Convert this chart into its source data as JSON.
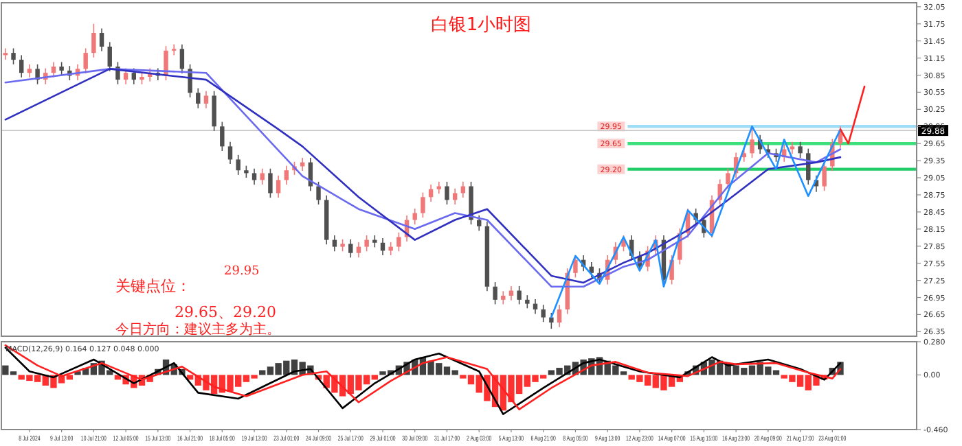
{
  "chart_data": [
    {
      "type": "candlestick",
      "title": "白银1小时图",
      "tick_labels": "y",
      "ylim": [
        26.27,
        32.12
      ],
      "yticks": [
        26.35,
        26.65,
        26.95,
        27.25,
        27.55,
        27.85,
        28.15,
        28.45,
        28.75,
        29.05,
        29.35,
        29.65,
        29.95,
        30.25,
        30.55,
        30.85,
        31.15,
        31.45,
        31.75,
        32.05
      ],
      "categories": [
        null,
        null,
        null,
        null,
        null,
        null,
        null,
        null,
        null,
        null,
        null,
        null,
        null,
        null,
        null,
        null,
        null,
        null,
        null,
        null,
        null,
        null,
        null,
        null,
        null,
        null,
        null,
        null,
        null,
        null,
        null,
        null,
        null,
        null,
        null,
        null,
        null,
        null,
        null,
        null,
        null,
        null,
        null,
        null,
        null,
        null,
        null,
        null,
        null,
        null,
        null,
        null,
        null,
        null,
        null,
        null,
        null,
        null,
        null,
        null,
        null,
        null,
        null,
        null,
        null,
        null,
        null,
        null,
        null,
        null,
        null,
        null,
        null,
        null,
        null,
        null,
        null,
        null,
        null,
        null,
        null,
        null,
        null,
        null,
        null,
        null,
        null,
        null,
        null,
        null,
        null,
        null,
        null,
        null,
        null,
        null,
        null,
        null,
        null,
        null,
        null,
        null,
        null,
        null,
        null,
        null,
        null,
        null,
        null,
        null,
        null,
        null,
        null,
        null
      ],
      "ohlc": [
        [
          31.2,
          31.32,
          31.12,
          31.24
        ],
        [
          31.24,
          31.32,
          31.04,
          31.12
        ],
        [
          31.12,
          31.2,
          30.81,
          30.89
        ],
        [
          30.89,
          31.04,
          30.81,
          30.96
        ],
        [
          30.96,
          31.04,
          30.69,
          30.77
        ],
        [
          30.77,
          30.97,
          30.69,
          30.89
        ],
        [
          30.89,
          31.08,
          30.81,
          31.0
        ],
        [
          31.0,
          31.08,
          30.85,
          30.93
        ],
        [
          30.93,
          31.01,
          30.76,
          30.84
        ],
        [
          30.84,
          31.04,
          30.76,
          30.96
        ],
        [
          30.96,
          31.32,
          30.88,
          31.24
        ],
        [
          31.24,
          31.75,
          31.16,
          31.59
        ],
        [
          31.59,
          31.67,
          31.27,
          31.35
        ],
        [
          31.35,
          31.43,
          30.92,
          31.0
        ],
        [
          31.0,
          31.08,
          30.69,
          30.77
        ],
        [
          30.77,
          30.97,
          30.69,
          30.89
        ],
        [
          30.89,
          30.97,
          30.69,
          30.77
        ],
        [
          30.77,
          30.9,
          30.69,
          30.82
        ],
        [
          30.82,
          30.97,
          30.74,
          30.89
        ],
        [
          30.89,
          30.97,
          30.76,
          30.84
        ],
        [
          30.84,
          31.36,
          30.76,
          31.28
        ],
        [
          31.28,
          31.39,
          31.2,
          31.31
        ],
        [
          31.31,
          31.39,
          30.88,
          30.96
        ],
        [
          30.96,
          31.04,
          30.46,
          30.54
        ],
        [
          30.54,
          30.62,
          30.27,
          30.35
        ],
        [
          30.35,
          30.57,
          30.27,
          30.49
        ],
        [
          30.49,
          30.57,
          29.87,
          29.95
        ],
        [
          29.95,
          30.03,
          29.52,
          29.6
        ],
        [
          29.6,
          29.68,
          29.29,
          29.37
        ],
        [
          29.37,
          29.45,
          29.1,
          29.18
        ],
        [
          29.18,
          29.26,
          29.05,
          29.13
        ],
        [
          29.13,
          29.21,
          28.93,
          29.01
        ],
        [
          29.01,
          29.21,
          28.93,
          29.13
        ],
        [
          29.13,
          29.21,
          28.7,
          28.78
        ],
        [
          28.78,
          29.09,
          28.7,
          29.01
        ],
        [
          29.01,
          29.26,
          28.93,
          29.18
        ],
        [
          29.18,
          29.33,
          29.1,
          29.25
        ],
        [
          29.25,
          29.4,
          29.17,
          29.32
        ],
        [
          29.32,
          29.4,
          28.82,
          28.9
        ],
        [
          28.9,
          28.98,
          28.58,
          28.66
        ],
        [
          28.66,
          28.74,
          27.88,
          27.96
        ],
        [
          27.96,
          28.04,
          27.76,
          27.84
        ],
        [
          27.84,
          27.97,
          27.76,
          27.89
        ],
        [
          27.89,
          27.97,
          27.65,
          27.73
        ],
        [
          27.73,
          27.92,
          27.65,
          27.84
        ],
        [
          27.84,
          28.04,
          27.76,
          27.96
        ],
        [
          27.96,
          28.04,
          27.83,
          27.91
        ],
        [
          27.91,
          27.99,
          27.69,
          27.77
        ],
        [
          27.77,
          27.92,
          27.69,
          27.84
        ],
        [
          27.84,
          28.09,
          27.76,
          28.01
        ],
        [
          28.01,
          28.39,
          27.93,
          28.31
        ],
        [
          28.31,
          28.51,
          28.23,
          28.43
        ],
        [
          28.43,
          28.79,
          28.35,
          28.71
        ],
        [
          28.71,
          28.93,
          28.63,
          28.85
        ],
        [
          28.85,
          28.98,
          28.77,
          28.9
        ],
        [
          28.9,
          28.98,
          28.58,
          28.66
        ],
        [
          28.66,
          28.86,
          28.58,
          28.78
        ],
        [
          28.78,
          28.98,
          28.7,
          28.9
        ],
        [
          28.9,
          28.98,
          28.23,
          28.31
        ],
        [
          28.31,
          28.39,
          28.12,
          28.2
        ],
        [
          28.2,
          28.28,
          27.06,
          27.14
        ],
        [
          27.14,
          27.22,
          26.83,
          26.91
        ],
        [
          26.91,
          27.06,
          26.83,
          26.98
        ],
        [
          26.98,
          27.15,
          26.9,
          27.07
        ],
        [
          27.07,
          27.15,
          26.83,
          26.91
        ],
        [
          26.91,
          26.99,
          26.76,
          26.84
        ],
        [
          26.84,
          26.92,
          26.66,
          26.74
        ],
        [
          26.74,
          26.82,
          26.52,
          26.6
        ],
        [
          26.6,
          26.68,
          26.4,
          26.51
        ],
        [
          26.51,
          26.82,
          26.43,
          26.74
        ],
        [
          26.74,
          27.46,
          26.66,
          27.38
        ],
        [
          27.38,
          27.69,
          27.3,
          27.61
        ],
        [
          27.61,
          27.69,
          27.41,
          27.49
        ],
        [
          27.49,
          27.57,
          27.3,
          27.38
        ],
        [
          27.38,
          27.46,
          27.18,
          27.26
        ],
        [
          27.26,
          27.69,
          27.18,
          27.61
        ],
        [
          27.61,
          27.92,
          27.53,
          27.84
        ],
        [
          27.84,
          28.04,
          27.76,
          27.96
        ],
        [
          27.96,
          28.04,
          27.6,
          27.68
        ],
        [
          27.68,
          27.76,
          27.41,
          27.49
        ],
        [
          27.49,
          27.85,
          27.41,
          27.77
        ],
        [
          27.77,
          28.04,
          27.69,
          27.96
        ],
        [
          27.96,
          28.04,
          27.18,
          27.26
        ],
        [
          27.26,
          27.69,
          27.18,
          27.61
        ],
        [
          27.61,
          28.16,
          27.53,
          28.08
        ],
        [
          28.08,
          28.51,
          28.0,
          28.43
        ],
        [
          28.43,
          28.51,
          28.23,
          28.31
        ],
        [
          28.31,
          28.39,
          28.0,
          28.08
        ],
        [
          28.08,
          28.74,
          28.0,
          28.66
        ],
        [
          28.66,
          29.02,
          28.58,
          28.94
        ],
        [
          28.94,
          29.21,
          28.86,
          29.13
        ],
        [
          29.13,
          29.49,
          29.05,
          29.41
        ],
        [
          29.41,
          29.56,
          29.33,
          29.48
        ],
        [
          29.48,
          29.95,
          29.4,
          29.72
        ],
        [
          29.72,
          29.8,
          29.47,
          29.55
        ],
        [
          29.55,
          29.63,
          29.4,
          29.48
        ],
        [
          29.48,
          29.56,
          29.33,
          29.41
        ],
        [
          29.41,
          29.63,
          29.33,
          29.55
        ],
        [
          29.55,
          29.68,
          29.47,
          29.6
        ],
        [
          29.6,
          29.68,
          29.4,
          29.48
        ],
        [
          29.48,
          29.56,
          28.93,
          29.01
        ],
        [
          29.01,
          29.09,
          28.8,
          28.9
        ],
        [
          28.9,
          29.33,
          28.82,
          29.25
        ],
        [
          29.25,
          29.73,
          29.17,
          29.65
        ],
        [
          29.65,
          29.95,
          29.57,
          29.88
        ],
        null,
        null,
        null,
        null,
        null,
        null,
        null,
        null,
        null
      ],
      "series": [
        {
          "type": "line",
          "color": "#6a6af0",
          "values": [
            30.72,
            null,
            null,
            null,
            null,
            null,
            null,
            null,
            null,
            null,
            null,
            null,
            null,
            30.96,
            null,
            null,
            null,
            null,
            null,
            null,
            null,
            null,
            null,
            null,
            null,
            30.89,
            null,
            null,
            null,
            null,
            null,
            null,
            null,
            null,
            29.53,
            null,
            null,
            29.08,
            null,
            null,
            null,
            null,
            null,
            null,
            28.5,
            null,
            null,
            null,
            null,
            null,
            null,
            28.15,
            null,
            null,
            null,
            null,
            28.43,
            null,
            null,
            null,
            28.31,
            null,
            null,
            null,
            null,
            null,
            null,
            null,
            27.14,
            null,
            null,
            null,
            27.14,
            null,
            null,
            null,
            null,
            27.49,
            null,
            null,
            27.61,
            null,
            null,
            null,
            null,
            28.03,
            null,
            null,
            null,
            null,
            28.9,
            null,
            null,
            null,
            null,
            29.48,
            null,
            null,
            null,
            null,
            null,
            29.32,
            null,
            null,
            29.55,
            null,
            null,
            null,
            null,
            null,
            null,
            null,
            null,
            null
          ]
        },
        {
          "type": "line",
          "color": "#3030c0",
          "values": [
            30.07,
            null,
            null,
            null,
            null,
            null,
            null,
            null,
            null,
            null,
            null,
            null,
            null,
            30.96,
            null,
            null,
            null,
            null,
            null,
            null,
            null,
            null,
            null,
            null,
            null,
            30.77,
            null,
            null,
            null,
            null,
            null,
            null,
            null,
            null,
            29.9,
            null,
            null,
            29.6,
            null,
            null,
            null,
            null,
            null,
            null,
            28.71,
            null,
            null,
            null,
            null,
            null,
            null,
            27.96,
            null,
            null,
            null,
            null,
            28.31,
            null,
            null,
            null,
            28.5,
            null,
            null,
            null,
            null,
            null,
            null,
            null,
            27.33,
            null,
            null,
            null,
            27.21,
            null,
            null,
            null,
            null,
            27.56,
            null,
            null,
            27.73,
            null,
            null,
            null,
            null,
            28.13,
            null,
            null,
            null,
            null,
            28.66,
            null,
            null,
            null,
            null,
            29.2,
            null,
            null,
            null,
            null,
            null,
            29.32,
            null,
            null,
            29.41,
            null,
            null,
            null,
            null,
            null,
            null,
            null,
            null,
            null
          ]
        },
        {
          "type": "line",
          "color": "#1e90ff",
          "values": [
            null,
            null,
            null,
            null,
            null,
            null,
            null,
            null,
            null,
            null,
            null,
            null,
            null,
            null,
            null,
            null,
            null,
            null,
            null,
            null,
            null,
            null,
            null,
            null,
            null,
            null,
            null,
            null,
            null,
            null,
            null,
            null,
            null,
            null,
            null,
            null,
            null,
            null,
            null,
            null,
            null,
            null,
            null,
            null,
            null,
            null,
            null,
            null,
            null,
            null,
            null,
            null,
            null,
            null,
            null,
            null,
            null,
            null,
            null,
            null,
            null,
            null,
            null,
            null,
            null,
            null,
            null,
            null,
            26.6,
            null,
            null,
            27.68,
            null,
            null,
            27.19,
            null,
            null,
            28.01,
            null,
            27.42,
            null,
            27.96,
            27.14,
            null,
            null,
            28.48,
            null,
            null,
            28.03,
            null,
            null,
            null,
            null,
            29.95,
            null,
            null,
            29.2,
            29.72,
            null,
            null,
            28.73,
            null,
            null,
            null,
            29.9,
            null,
            null,
            null,
            null,
            null,
            null,
            null,
            null,
            null
          ]
        },
        {
          "type": "line",
          "color": "#ff2020",
          "values": [
            null,
            null,
            null,
            null,
            null,
            null,
            null,
            null,
            null,
            null,
            null,
            null,
            null,
            null,
            null,
            null,
            null,
            null,
            null,
            null,
            null,
            null,
            null,
            null,
            null,
            null,
            null,
            null,
            null,
            null,
            null,
            null,
            null,
            null,
            null,
            null,
            null,
            null,
            null,
            null,
            null,
            null,
            null,
            null,
            null,
            null,
            null,
            null,
            null,
            null,
            null,
            null,
            null,
            null,
            null,
            null,
            null,
            null,
            null,
            null,
            null,
            null,
            null,
            null,
            null,
            null,
            null,
            null,
            null,
            null,
            null,
            null,
            null,
            null,
            null,
            null,
            null,
            null,
            null,
            null,
            null,
            null,
            null,
            null,
            null,
            null,
            null,
            null,
            null,
            null,
            null,
            null,
            null,
            null,
            null,
            null,
            null,
            null,
            null,
            null,
            null,
            null,
            null,
            null,
            29.9,
            29.65,
            null,
            30.65,
            null,
            null,
            null,
            null,
            null,
            null
          ]
        }
      ],
      "ref_lines": [
        {
          "axis": "y",
          "value": 29.95,
          "label": "29.95",
          "color": "#9fdcf5"
        },
        {
          "axis": "y",
          "value": 29.65,
          "label": "29.65",
          "color": "#3ce07a"
        },
        {
          "axis": "y",
          "value": 29.2,
          "label": "29.20",
          "color": "#22cc66"
        },
        {
          "axis": "y",
          "value": 29.88,
          "label": "29.88",
          "color": "#c8c8c8"
        }
      ],
      "annotations": [
        "29.95",
        "关键点位：",
        "29.65、29.20",
        "今日方向：建议主多为主。"
      ]
    },
    {
      "type": "bar",
      "title": "MACD(12,26,9) 0.164 0.127 0.048 0.000",
      "ylim": [
        -0.46,
        0.28
      ],
      "yticks": [
        {
          "value": 0.28,
          "label": "0.280"
        },
        {
          "value": 0,
          "label": "0.00"
        },
        {
          "value": -0.46,
          "label": "-0.460"
        }
      ],
      "categories": [
        null,
        null,
        null,
        "8 Jul 2024",
        null,
        null,
        null,
        "9 Jul 13:00",
        null,
        null,
        null,
        "10 Jul 21:00",
        null,
        null,
        null,
        "12 Jul 05:00",
        null,
        null,
        null,
        "15 Jul 13:00",
        null,
        null,
        null,
        "16 Jul 21:00",
        null,
        null,
        null,
        "18 Jul 05:00",
        null,
        null,
        null,
        "19 Jul 13:00",
        null,
        null,
        null,
        "23 Jul 01:00",
        null,
        null,
        null,
        "24 Jul 09:00",
        null,
        null,
        null,
        "25 Jul 17:00",
        null,
        null,
        null,
        "29 Jul 01:00",
        null,
        null,
        null,
        "30 Jul 09:00",
        null,
        null,
        null,
        "31 Jul 17:00",
        null,
        null,
        null,
        "2 Aug 03:00",
        null,
        null,
        null,
        "5 Aug 13:00",
        null,
        null,
        null,
        "6 Aug 21:00",
        null,
        null,
        null,
        "8 Aug 05:00",
        null,
        null,
        null,
        "9 Aug 13:00",
        null,
        null,
        null,
        "12 Aug 23:00",
        null,
        null,
        null,
        "14 Aug 07:00",
        null,
        null,
        null,
        "15 Aug 15:00",
        null,
        null,
        null,
        "16 Aug 23:00",
        null,
        null,
        null,
        "20 Aug 09:00",
        null,
        null,
        null,
        "21 Aug 17:00",
        null,
        null,
        null,
        "23 Aug 01:00",
        null,
        null,
        null,
        null,
        null,
        null,
        null,
        null,
        null,
        null
      ],
      "series": [
        {
          "type": "bar",
          "values": [
            0.08,
            0.03,
            -0.04,
            -0.05,
            -0.06,
            -0.09,
            -0.11,
            -0.07,
            -0.04,
            0.03,
            0.06,
            0.1,
            0.12,
            0.04,
            -0.04,
            -0.08,
            -0.11,
            -0.09,
            -0.06,
            0.05,
            0.13,
            0.09,
            0.05,
            -0.04,
            -0.09,
            -0.13,
            -0.16,
            -0.15,
            -0.14,
            -0.1,
            -0.06,
            -0.03,
            0.04,
            0.07,
            0.1,
            0.12,
            0.13,
            0.11,
            0.08,
            -0.04,
            -0.11,
            -0.15,
            -0.18,
            -0.16,
            -0.13,
            -0.08,
            -0.04,
            0.03,
            0.04,
            0.08,
            0.11,
            0.13,
            0.15,
            0.12,
            0.1,
            0.07,
            0.04,
            -0.03,
            -0.08,
            -0.15,
            -0.22,
            -0.27,
            -0.3,
            -0.23,
            -0.16,
            -0.1,
            -0.06,
            -0.03,
            0.04,
            0.06,
            0.08,
            0.11,
            0.13,
            0.14,
            0.15,
            0.12,
            0.08,
            0.03,
            -0.04,
            -0.06,
            -0.09,
            -0.11,
            -0.13,
            -0.1,
            -0.06,
            0.03,
            0.08,
            0.11,
            0.13,
            0.12,
            0.1,
            0.08,
            0.06,
            0.08,
            0.11,
            0.07,
            0.04,
            -0.03,
            -0.06,
            -0.1,
            -0.13,
            -0.09,
            -0.04,
            0.06,
            0.11,
            null,
            null,
            null,
            null,
            null,
            null,
            null,
            null,
            null
          ],
          "colors": [
            "#404040",
            "#404040",
            "#ff3030",
            "#ff3030",
            "#ff3030",
            "#ff3030",
            "#ff3030",
            "#ff3030",
            "#ff3030",
            "#404040",
            "#404040",
            "#404040",
            "#404040",
            "#404040",
            "#ff3030",
            "#ff3030",
            "#ff3030",
            "#ff3030",
            "#ff3030",
            "#404040",
            "#404040",
            "#404040",
            "#404040",
            "#ff3030",
            "#ff3030",
            "#ff3030",
            "#ff3030",
            "#ff3030",
            "#ff3030",
            "#ff3030",
            "#ff3030",
            "#ff3030",
            "#404040",
            "#404040",
            "#404040",
            "#404040",
            "#404040",
            "#404040",
            "#404040",
            "#ff3030",
            "#ff3030",
            "#ff3030",
            "#ff3030",
            "#ff3030",
            "#ff3030",
            "#ff3030",
            "#ff3030",
            "#404040",
            "#404040",
            "#404040",
            "#404040",
            "#404040",
            "#404040",
            "#404040",
            "#404040",
            "#404040",
            "#404040",
            "#ff3030",
            "#ff3030",
            "#ff3030",
            "#ff3030",
            "#ff3030",
            "#ff3030",
            "#ff3030",
            "#ff3030",
            "#ff3030",
            "#ff3030",
            "#ff3030",
            "#404040",
            "#404040",
            "#404040",
            "#404040",
            "#404040",
            "#404040",
            "#404040",
            "#404040",
            "#404040",
            "#404040",
            "#ff3030",
            "#ff3030",
            "#ff3030",
            "#ff3030",
            "#ff3030",
            "#ff3030",
            "#ff3030",
            "#404040",
            "#404040",
            "#404040",
            "#404040",
            "#404040",
            "#404040",
            "#404040",
            "#404040",
            "#404040",
            "#404040",
            "#404040",
            "#404040",
            "#ff3030",
            "#ff3030",
            "#ff3030",
            "#ff3030",
            "#ff3030",
            "#ff3030",
            "#404040",
            "#404040",
            null,
            null,
            null,
            null,
            null,
            null,
            null,
            null,
            null
          ]
        },
        {
          "type": "line",
          "color": "#000000",
          "values": [
            0.23,
            null,
            null,
            0.03,
            null,
            null,
            -0.02,
            null,
            null,
            null,
            null,
            0.13,
            null,
            null,
            null,
            null,
            -0.07,
            null,
            null,
            null,
            null,
            0.1,
            null,
            null,
            -0.15,
            null,
            null,
            null,
            null,
            -0.2,
            null,
            null,
            null,
            null,
            null,
            null,
            0.03,
            null,
            0.05,
            null,
            null,
            null,
            -0.28,
            null,
            null,
            null,
            -0.07,
            null,
            null,
            null,
            null,
            0.13,
            null,
            null,
            0.18,
            null,
            null,
            null,
            null,
            0.03,
            null,
            null,
            -0.33,
            null,
            null,
            null,
            null,
            -0.11,
            null,
            null,
            null,
            null,
            0.1,
            null,
            0.13,
            null,
            null,
            null,
            null,
            0.03,
            null,
            null,
            null,
            null,
            -0.02,
            null,
            null,
            null,
            0.15,
            null,
            0.08,
            null,
            null,
            null,
            null,
            0.13,
            null,
            null,
            null,
            0.05,
            null,
            null,
            -0.04,
            null,
            0.1,
            null,
            null,
            null,
            null,
            null,
            null,
            null,
            null,
            null
          ]
        },
        {
          "type": "line",
          "color": "#ff2020",
          "values": [
            0.25,
            null,
            null,
            null,
            0.08,
            null,
            null,
            -0.01,
            null,
            null,
            null,
            null,
            0.1,
            null,
            null,
            null,
            null,
            -0.04,
            null,
            null,
            null,
            null,
            0.07,
            null,
            null,
            null,
            -0.1,
            null,
            null,
            null,
            -0.18,
            null,
            null,
            null,
            null,
            null,
            null,
            0.0,
            null,
            null,
            0.03,
            null,
            null,
            null,
            -0.23,
            null,
            null,
            null,
            -0.05,
            null,
            null,
            null,
            0.1,
            null,
            null,
            0.15,
            null,
            null,
            null,
            null,
            0.05,
            null,
            null,
            null,
            -0.29,
            null,
            null,
            null,
            -0.11,
            null,
            null,
            null,
            null,
            0.08,
            null,
            null,
            0.11,
            null,
            null,
            null,
            0.02,
            null,
            null,
            null,
            null,
            -0.01,
            null,
            null,
            null,
            0.11,
            null,
            0.09,
            null,
            null,
            null,
            null,
            0.1,
            null,
            null,
            null,
            0.02,
            null,
            null,
            -0.03,
            0.05,
            null,
            null,
            null,
            null,
            null,
            null,
            null,
            null,
            null
          ]
        }
      ]
    }
  ]
}
